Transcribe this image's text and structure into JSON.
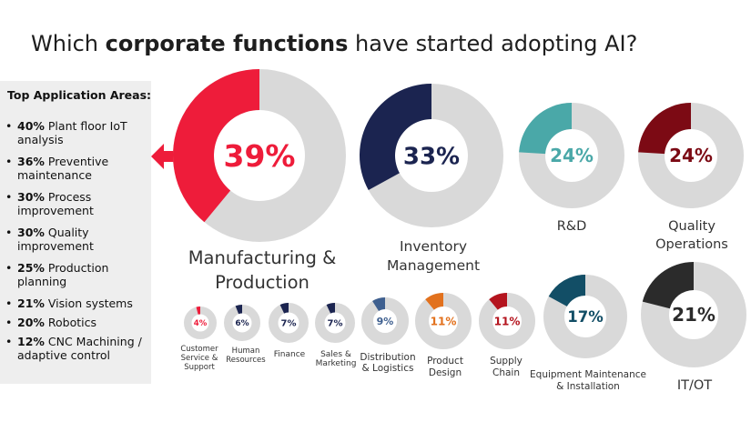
{
  "title": {
    "prefix": "Which ",
    "bold": "corporate functions",
    "suffix": " have started adopting AI?"
  },
  "sidebar": {
    "heading": "Top Application Areas:",
    "items": [
      {
        "pct": "40%",
        "text": " Plant floor IoT analysis"
      },
      {
        "pct": "36%",
        "text": " Preventive maintenance"
      },
      {
        "pct": "30%",
        "text": " Process improvement"
      },
      {
        "pct": "30%",
        "text": " Quality improvement"
      },
      {
        "pct": "25%",
        "text": " Production planning"
      },
      {
        "pct": "21%",
        "text": " Vision systems"
      },
      {
        "pct": "20%",
        "text": " Robotics"
      },
      {
        "pct": "12%",
        "text": " CNC Machining / adaptive control"
      }
    ]
  },
  "chart_data": {
    "type": "donut",
    "series": [
      {
        "label": "Manufacturing & Production",
        "value": 39,
        "display": "39%",
        "color": "#ee1c3a"
      },
      {
        "label": "Inventory Management",
        "value": 33,
        "display": "33%",
        "color": "#1b2450"
      },
      {
        "label": "R&D",
        "value": 24,
        "display": "24%",
        "color": "#4aa8a8"
      },
      {
        "label": "Quality Operations",
        "value": 24,
        "display": "24%",
        "color": "#7c0a14"
      },
      {
        "label": "Customer Service & Support",
        "value": 4,
        "display": "4%",
        "color": "#ee1c3a"
      },
      {
        "label": "Human Resources",
        "value": 6,
        "display": "6%",
        "color": "#1b2450"
      },
      {
        "label": "Finance",
        "value": 7,
        "display": "7%",
        "color": "#1b2450"
      },
      {
        "label": "Sales & Marketing",
        "value": 7,
        "display": "7%",
        "color": "#1b2450"
      },
      {
        "label": "Distribution & Logistics",
        "value": 9,
        "display": "9%",
        "color": "#3e5f8f"
      },
      {
        "label": "Product Design",
        "value": 11,
        "display": "11%",
        "color": "#e2711d"
      },
      {
        "label": "Supply Chain",
        "value": 11,
        "display": "11%",
        "color": "#b4141e"
      },
      {
        "label": "Equipment Maintenance & Installation",
        "value": 17,
        "display": "17%",
        "color": "#124e66"
      },
      {
        "label": "IT/OT",
        "value": 21,
        "display": "21%",
        "color": "#2b2b2b"
      }
    ],
    "remainder_color": "#d9d9d9"
  }
}
